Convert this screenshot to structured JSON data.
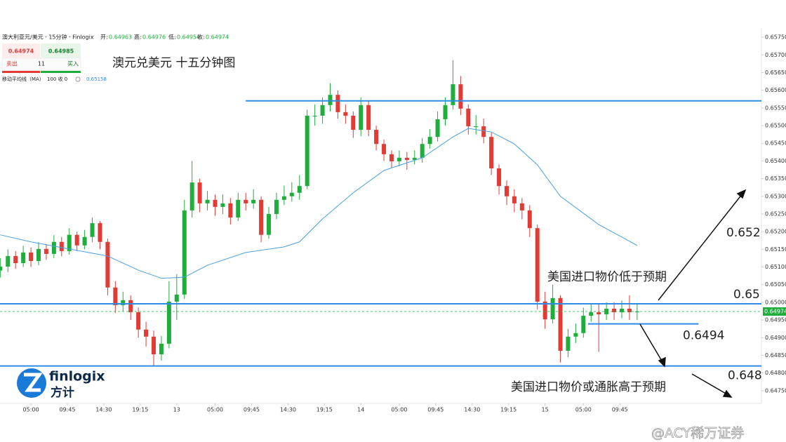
{
  "chart_data": {
    "type": "candlestick",
    "title": "澳元兑美元 十五分钟图",
    "header": {
      "symbol": "澳大利亚元/美元 · 15分钟 · Finlogix",
      "open_label": "开:",
      "open": 0.64963,
      "high_label": "高:",
      "high": 0.64976,
      "low_label": "低:",
      "low": 0.64954,
      "close_label": "收:",
      "close": 0.64974
    },
    "trade_box": {
      "sell": 0.64974,
      "buy": 0.64985,
      "spread": 11,
      "sell_label": "卖出",
      "buy_label": "买入"
    },
    "ma_legend": {
      "name": "移动平均线（MA）",
      "params": "100 收 0",
      "value": 0.65158
    },
    "up_color": "#1fae3c",
    "down_color": "#e23b36",
    "x": [
      1,
      2,
      3,
      4,
      5,
      6,
      7,
      8,
      9,
      10,
      11,
      12,
      13,
      14,
      15,
      16,
      17,
      18,
      19,
      20,
      21,
      22,
      23,
      24,
      25,
      26,
      27,
      28,
      29,
      30,
      31,
      32,
      33,
      34,
      35,
      36,
      37,
      38,
      39,
      40,
      41,
      42,
      43,
      44,
      45,
      46,
      47,
      48,
      49,
      50,
      51,
      52,
      53,
      54,
      55,
      56,
      57,
      58,
      59,
      60,
      61,
      62,
      63,
      64,
      65,
      66,
      67,
      68,
      69,
      70,
      71,
      72,
      73,
      74,
      75,
      76,
      77,
      78,
      79,
      80,
      81,
      82,
      83,
      84
    ],
    "open": [
      0.6509,
      0.65101,
      0.65131,
      0.65111,
      0.65141,
      0.65117,
      0.65151,
      0.65137,
      0.65171,
      0.65145,
      0.65191,
      0.65161,
      0.65185,
      0.65224,
      0.65171,
      0.65042,
      0.64992,
      0.65006,
      0.64972,
      0.64923,
      0.64903,
      0.64853,
      0.64883,
      0.65002,
      0.65022,
      0.6526,
      0.65339,
      0.6528,
      0.6529,
      0.6527,
      0.6528,
      0.6524,
      0.6529,
      0.6528,
      0.6529,
      0.65191,
      0.6525,
      0.6529,
      0.653,
      0.6531,
      0.65329,
      0.65528,
      0.65528,
      0.65558,
      0.65587,
      0.65538,
      0.65528,
      0.65488,
      0.65558,
      0.65488,
      0.65448,
      0.65419,
      0.65399,
      0.65409,
      0.65403,
      0.65409,
      0.65448,
      0.65468,
      0.65518,
      0.65558,
      0.65617,
      0.65548,
      0.65498,
      0.65498,
      0.65468,
      0.65379,
      0.65329,
      0.653,
      0.6528,
      0.6526,
      0.6521,
      0.65002,
      0.64952,
      0.65012,
      0.64863,
      0.64903,
      0.64913,
      0.64962,
      0.64972,
      0.64966,
      0.64982,
      0.64972,
      0.64982,
      0.64972
    ],
    "high": [
      0.65125,
      0.6515,
      0.65145,
      0.6516,
      0.65155,
      0.6517,
      0.65165,
      0.6519,
      0.65185,
      0.6521,
      0.652,
      0.65205,
      0.6524,
      0.6523,
      0.6518,
      0.6506,
      0.6503,
      0.6502,
      0.64985,
      0.64945,
      0.6492,
      0.64905,
      0.6506,
      0.6508,
      0.6529,
      0.654,
      0.6535,
      0.65315,
      0.65305,
      0.65305,
      0.65295,
      0.6531,
      0.6531,
      0.6532,
      0.653,
      0.6527,
      0.6531,
      0.6533,
      0.6534,
      0.6536,
      0.65545,
      0.6556,
      0.6558,
      0.6562,
      0.656,
      0.6556,
      0.6554,
      0.6558,
      0.6557,
      0.655,
      0.6546,
      0.6543,
      0.6543,
      0.65425,
      0.6543,
      0.65465,
      0.6549,
      0.6554,
      0.6558,
      0.65685,
      0.6564,
      0.6556,
      0.6553,
      0.6552,
      0.6548,
      0.6539,
      0.65345,
      0.6532,
      0.65295,
      0.65275,
      0.6522,
      0.6503,
      0.6505,
      0.6502,
      0.64925,
      0.6494,
      0.64985,
      0.64995,
      0.64995,
      0.65,
      0.65,
      0.65005,
      0.6502,
      0.64995
    ],
    "low": [
      0.6507,
      0.65085,
      0.65095,
      0.651,
      0.651,
      0.65105,
      0.6512,
      0.65125,
      0.6513,
      0.65135,
      0.65145,
      0.6515,
      0.6517,
      0.6515,
      0.6502,
      0.6497,
      0.64975,
      0.6495,
      0.649,
      0.64875,
      0.6482,
      0.64835,
      0.6487,
      0.6495,
      0.6501,
      0.6524,
      0.65255,
      0.6526,
      0.65245,
      0.6525,
      0.6522,
      0.6523,
      0.6526,
      0.65265,
      0.6517,
      0.6518,
      0.65235,
      0.65275,
      0.65285,
      0.6529,
      0.6532,
      0.655,
      0.65505,
      0.6554,
      0.6552,
      0.65505,
      0.65465,
      0.6547,
      0.6547,
      0.6543,
      0.654,
      0.6538,
      0.65385,
      0.65375,
      0.6539,
      0.65395,
      0.65435,
      0.65455,
      0.655,
      0.65545,
      0.6553,
      0.65475,
      0.65475,
      0.6545,
      0.6536,
      0.65305,
      0.65275,
      0.65255,
      0.65235,
      0.65185,
      0.6498,
      0.64925,
      0.6494,
      0.6483,
      0.64845,
      0.64885,
      0.649,
      0.64945,
      0.6486,
      0.6495,
      0.6495,
      0.64955,
      0.6495,
      0.6495
    ],
    "close": [
      0.65101,
      0.65131,
      0.65111,
      0.65141,
      0.65117,
      0.65151,
      0.65137,
      0.65171,
      0.65145,
      0.65191,
      0.65161,
      0.65185,
      0.65224,
      0.65171,
      0.65042,
      0.64992,
      0.65006,
      0.64972,
      0.64923,
      0.64903,
      0.64853,
      0.64883,
      0.65002,
      0.65022,
      0.6526,
      0.65339,
      0.6528,
      0.6529,
      0.6527,
      0.6528,
      0.6524,
      0.6529,
      0.6528,
      0.6529,
      0.65191,
      0.6525,
      0.6529,
      0.653,
      0.6531,
      0.65329,
      0.65528,
      0.65528,
      0.65558,
      0.65587,
      0.65538,
      0.65528,
      0.65488,
      0.65558,
      0.65488,
      0.65448,
      0.65419,
      0.65399,
      0.65409,
      0.65403,
      0.65409,
      0.65448,
      0.65468,
      0.65518,
      0.65558,
      0.65617,
      0.65548,
      0.65498,
      0.65498,
      0.65468,
      0.65379,
      0.65329,
      0.653,
      0.6528,
      0.6526,
      0.6521,
      0.65002,
      0.64952,
      0.65012,
      0.64863,
      0.64903,
      0.64913,
      0.64962,
      0.64972,
      0.64966,
      0.64982,
      0.64972,
      0.64982,
      0.64972,
      0.64974
    ],
    "ma": {
      "color": "#4a9fe0",
      "x": [
        1,
        5,
        10,
        15,
        19,
        22,
        25,
        28,
        33,
        38,
        40,
        43,
        47,
        51,
        56,
        60,
        62,
        65,
        68,
        71,
        74,
        79,
        84
      ],
      "values": [
        0.65191,
        0.65171,
        0.65151,
        0.65131,
        0.65091,
        0.65068,
        0.65071,
        0.65105,
        0.65141,
        0.65157,
        0.65171,
        0.65236,
        0.6531,
        0.65373,
        0.65409,
        0.65468,
        0.65492,
        0.65482,
        0.65448,
        0.65389,
        0.653,
        0.6522,
        0.65161
      ]
    },
    "last_price": 0.64974,
    "level_color": "#2f8be6",
    "levels": [
      {
        "value": 0.6557,
        "x": [
          33,
          100.2
        ]
      },
      {
        "value": 0.64996,
        "label": 0.65,
        "x": [
          0.97,
          100.2
        ]
      },
      {
        "value": 0.64939,
        "label": 0.6494,
        "x": [
          77.6,
          92
        ]
      },
      {
        "value": 0.6482,
        "label": 0.648,
        "x": [
          0.97,
          100.2
        ]
      }
    ],
    "target": {
      "value": 0.652,
      "label": 0.652
    },
    "notes": [
      "美国进口物价低于预期",
      "美国进口物价或通胀高于预期"
    ],
    "xlim": [
      0.97,
      100.2
    ],
    "ylim": [
      0.6472,
      0.65766
    ],
    "xticks": [
      {
        "value": 5,
        "label": "05:00"
      },
      {
        "value": 9.75,
        "label": "09:45"
      },
      {
        "value": 14.5,
        "label": "14:30"
      },
      {
        "value": 19.25,
        "label": "19:15"
      },
      {
        "value": 24,
        "label": "13"
      },
      {
        "value": 29,
        "label": "05:00"
      },
      {
        "value": 33.75,
        "label": "09:45"
      },
      {
        "value": 38.5,
        "label": "14:30"
      },
      {
        "value": 43.25,
        "label": "19:15"
      },
      {
        "value": 48,
        "label": "14"
      },
      {
        "value": 53,
        "label": "05:00"
      },
      {
        "value": 57.75,
        "label": "09:45"
      },
      {
        "value": 62.5,
        "label": "14:30"
      },
      {
        "value": 67.25,
        "label": "19:15"
      },
      {
        "value": 72,
        "label": "15"
      },
      {
        "value": 77,
        "label": "05:00"
      },
      {
        "value": 81.75,
        "label": "09:45"
      }
    ],
    "yticks": [
      {
        "value": 0.6475,
        "label": "0.64750"
      },
      {
        "value": 0.648,
        "label": "0.64800"
      },
      {
        "value": 0.6485,
        "label": "0.64850"
      },
      {
        "value": 0.649,
        "label": "0.64900"
      },
      {
        "value": 0.6495,
        "label": "0.64950"
      },
      {
        "value": 0.65,
        "label": "0.65000"
      },
      {
        "value": 0.6505,
        "label": "0.65050"
      },
      {
        "value": 0.651,
        "label": "0.65100"
      },
      {
        "value": 0.6515,
        "label": "0.65150"
      },
      {
        "value": 0.652,
        "label": "0.65200"
      },
      {
        "value": 0.6525,
        "label": "0.65250"
      },
      {
        "value": 0.653,
        "label": "0.65300"
      },
      {
        "value": 0.6535,
        "label": "0.65350"
      },
      {
        "value": 0.654,
        "label": "0.65400"
      },
      {
        "value": 0.6545,
        "label": "0.65450"
      },
      {
        "value": 0.655,
        "label": "0.65500"
      },
      {
        "value": 0.6555,
        "label": "0.65550"
      },
      {
        "value": 0.656,
        "label": "0.65600"
      },
      {
        "value": 0.6565,
        "label": "0.65650"
      },
      {
        "value": 0.657,
        "label": "0.65700"
      },
      {
        "value": 0.6575,
        "label": "0.65750"
      }
    ]
  },
  "logo": {
    "name": "finlogix",
    "cn": "方计"
  },
  "watermark": "@ACY稀万证券"
}
